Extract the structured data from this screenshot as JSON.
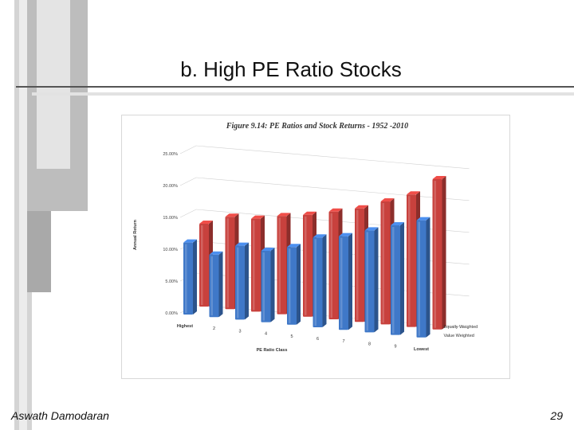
{
  "slide": {
    "title": "b. High PE Ratio Stocks",
    "author": "Aswath Damodaran",
    "page_number": "29"
  },
  "chart_data": {
    "type": "bar",
    "title": "Figure 9.14: PE Ratios and Stock Returns - 1952 -2010",
    "xlabel": "PE Ratio Class",
    "ylabel": "Annual Return",
    "ylim": [
      0,
      25
    ],
    "yticks": [
      "0.00%",
      "5.00%",
      "10.00%",
      "15.00%",
      "20.00%",
      "25.00%"
    ],
    "categories": [
      "Highest",
      "2",
      "3",
      "4",
      "5",
      "6",
      "7",
      "8",
      "9",
      "Lowest"
    ],
    "series": [
      {
        "name": "Value Weighted",
        "color": "#3f78c8",
        "values": [
          11.3,
          9.8,
          11.6,
          11.2,
          12.2,
          14.1,
          14.7,
          16.0,
          17.2,
          18.4
        ]
      },
      {
        "name": "Equally Weighted",
        "color": "#c8413d",
        "values": [
          13.0,
          14.5,
          14.6,
          15.4,
          16.0,
          16.9,
          17.8,
          19.3,
          20.8,
          23.6
        ]
      }
    ],
    "legend_position": "bottom-right",
    "grid": true
  }
}
